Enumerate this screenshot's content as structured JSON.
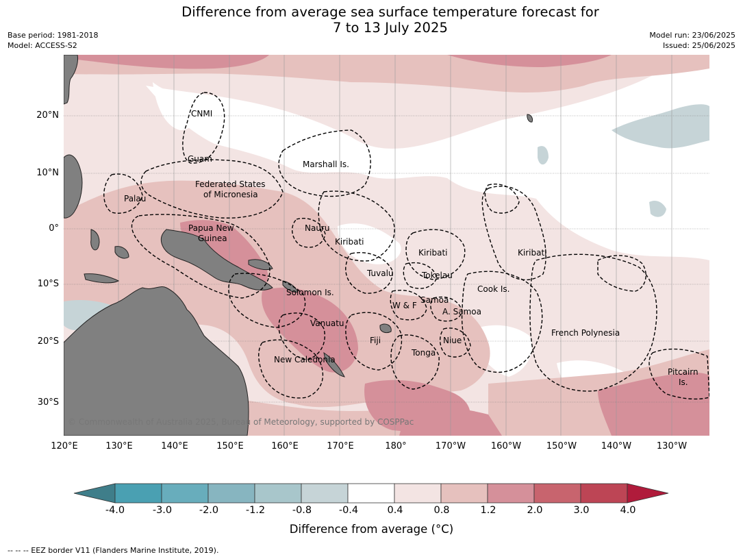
{
  "header": {
    "title_line1": "Difference from average sea surface temperature forecast for",
    "title_line2": "7 to 13 July 2025",
    "base_period": "Base period: 1981-2018",
    "model": "Model: ACCESS-S2",
    "model_run": "Model run: 23/06/2025",
    "issued": "Issued: 25/06/2025"
  },
  "map": {
    "latitude_labels": [
      "20°N",
      "10°N",
      "0°",
      "10°S",
      "20°S",
      "30°S"
    ],
    "longitude_labels": [
      "120°E",
      "130°E",
      "140°E",
      "150°E",
      "160°E",
      "170°E",
      "180°",
      "170°W",
      "160°W",
      "150°W",
      "140°W",
      "130°W"
    ],
    "place_labels": [
      "CNMI",
      "Guam",
      "Marshall Is.",
      "Federated States",
      "of Micronesia",
      "Palau",
      "Papua New",
      "Guinea",
      "Nauru",
      "Kiribati",
      "Kiribati",
      "Kiribati",
      "Tuvalu",
      "Tokelau",
      "Cook Is.",
      "Solomon Is.",
      "W & F",
      "Samoa",
      "A. Samoa",
      "Vanuatu",
      "Fiji",
      "Niue",
      "Tonga",
      "French Polynesia",
      "New Caledonia",
      "Pitcairn",
      "Is."
    ],
    "copyright": "© Commonwealth of Australia 2025, Bureau of Meteorology, supported by COSPPac",
    "colors": {
      "land": "#808080",
      "anomaly_0_4_to_0_8": "#f3e4e3",
      "anomaly_0_8_to_1_2": "#e6c1be",
      "anomaly_1_2_to_2_0": "#d5909a",
      "anomaly_minus_0_8_to_minus_0_4": "#c6d4d7"
    }
  },
  "colorbar": {
    "ticks": [
      "-4.0",
      "-3.0",
      "-2.0",
      "-1.2",
      "-0.8",
      "-0.4",
      "0.4",
      "0.8",
      "1.2",
      "2.0",
      "3.0",
      "4.0"
    ],
    "colors": [
      "#3f7e8a",
      "#4aa0b2",
      "#68adbc",
      "#87b5c0",
      "#a8c6cb",
      "#c6d4d7",
      "#ffffff",
      "#f3e4e3",
      "#e6c1be",
      "#d5909a",
      "#c8646e",
      "#bd4555",
      "#b01b3b"
    ],
    "title": "Difference from average (°C)"
  },
  "footnote": "--  --  -- EEZ border V11 (Flanders Marine Institute, 2019)."
}
